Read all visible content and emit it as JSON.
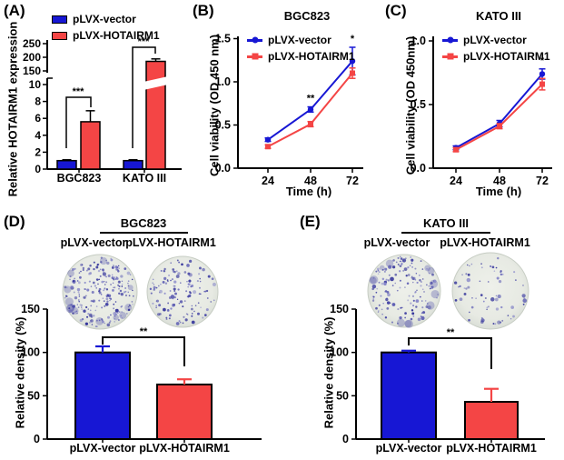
{
  "panels": {
    "a": "(A)",
    "b": "(B)",
    "c": "(C)",
    "d": "(D)",
    "e": "(E)"
  },
  "colors": {
    "vector_blue": "#1717d4",
    "hotairm1_red": "#f44545",
    "axis": "#000000",
    "dish_background": "#e7eae3",
    "colony_purple": "#4444a4"
  },
  "chart_data": [
    {
      "id": "A",
      "type": "bar",
      "ylabel": "Relative HOTAIRM1 expression",
      "categories": [
        "BGC823",
        "KATO III"
      ],
      "series": [
        {
          "name": "pLVX-vector",
          "values": [
            1.0,
            1.0
          ],
          "errors": [
            0.1,
            0.1
          ]
        },
        {
          "name": "pLVX-HOTAIRM1",
          "values": [
            5.6,
            185
          ],
          "errors": [
            1.3,
            9
          ]
        }
      ],
      "y_axis": {
        "lower_ticks": [
          0,
          2,
          4,
          6,
          8,
          10
        ],
        "upper_ticks": [
          150,
          200,
          250
        ],
        "break_between": [
          10,
          150
        ]
      },
      "significance": [
        {
          "category": "BGC823",
          "label": "***"
        },
        {
          "category": "KATO III",
          "label": "***"
        }
      ],
      "legend": [
        "pLVX-vector",
        "pLVX-HOTAIRM1"
      ],
      "legend_position": "top-left"
    },
    {
      "id": "B",
      "type": "line",
      "title": "BGC823",
      "xlabel": "Time (h)",
      "ylabel": "Cell viability (OD 450 nm)",
      "x": [
        24,
        48,
        72
      ],
      "y_ticks": [
        0.0,
        0.5,
        1.0,
        1.5
      ],
      "ylim": [
        0,
        1.5
      ],
      "series": [
        {
          "name": "pLVX-vector",
          "marker": "circle",
          "values": [
            0.33,
            0.68,
            1.24
          ],
          "errors": [
            0.02,
            0.03,
            0.16
          ]
        },
        {
          "name": "pLVX-HOTAIRM1",
          "marker": "square",
          "values": [
            0.25,
            0.51,
            1.1
          ],
          "errors": [
            0.02,
            0.03,
            0.06
          ]
        }
      ],
      "annotations": [
        {
          "x": 48,
          "label": "**"
        },
        {
          "x": 72,
          "label": "*"
        }
      ],
      "legend_position": "top-left"
    },
    {
      "id": "C",
      "type": "line",
      "title": "KATO III",
      "xlabel": "Time (h)",
      "ylabel": "Cell viability (OD 450nm)",
      "x": [
        24,
        48,
        72
      ],
      "y_ticks": [
        0.0,
        0.5,
        1.0
      ],
      "ylim": [
        0,
        1.0
      ],
      "series": [
        {
          "name": "pLVX-vector",
          "marker": "circle",
          "values": [
            0.16,
            0.35,
            0.74
          ],
          "errors": [
            0.015,
            0.025,
            0.04
          ]
        },
        {
          "name": "pLVX-HOTAIRM1",
          "marker": "square",
          "values": [
            0.145,
            0.33,
            0.66
          ],
          "errors": [
            0.015,
            0.02,
            0.045
          ]
        }
      ],
      "annotations": [
        {
          "x": 72,
          "label": "*"
        }
      ],
      "legend_position": "top-left"
    },
    {
      "id": "D",
      "type": "bar",
      "group_title": "BGC823",
      "ylabel": "Relative density (%)",
      "categories": [
        "pLVX-vector",
        "pLVX-HOTAIRM1"
      ],
      "values": [
        100,
        63
      ],
      "errors": [
        7,
        6
      ],
      "y_ticks": [
        0,
        50,
        100,
        150
      ],
      "ylim": [
        0,
        150
      ],
      "significance": {
        "label": "**"
      },
      "dishes": [
        {
          "label": "pLVX-vector",
          "colony_count": 230
        },
        {
          "label": "pLVX-HOTAIRM1",
          "colony_count": 135
        }
      ]
    },
    {
      "id": "E",
      "type": "bar",
      "group_title": "KATO III",
      "ylabel": "Relative density (%)",
      "categories": [
        "pLVX-vector",
        "pLVX-HOTAIRM1"
      ],
      "values": [
        100,
        43
      ],
      "errors": [
        2,
        15
      ],
      "y_ticks": [
        0,
        50,
        100,
        150
      ],
      "ylim": [
        0,
        150
      ],
      "significance": {
        "label": "**"
      },
      "dishes": [
        {
          "label": "pLVX-vector",
          "colony_count": 150
        },
        {
          "label": "pLVX-HOTAIRM1",
          "colony_count": 68
        }
      ]
    }
  ]
}
